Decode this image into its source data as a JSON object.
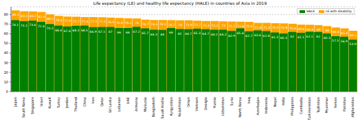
{
  "chart_data": {
    "type": "bar",
    "title": "Life expectancy (LE) and healthy life expectancy (HALE) in countries of Asia in 2019",
    "categories": [
      "Japan",
      "South Korea",
      "Singapore",
      "Israel",
      "Kuwait",
      "Turkey",
      "Jordan",
      "Thailand",
      "China",
      "Iran",
      "Qatar",
      "Sri Lanka",
      "Lebanon",
      "UAE",
      "Armenia",
      "Malaysia",
      "Bangladesh",
      "Saudi Arabia",
      "Kyrgyzstan",
      "Kazakhstan",
      "Oman",
      "Vietnam",
      "Georgia",
      "Russia",
      "Uzbekistan",
      "Syria",
      "North Korea",
      "Iraq",
      "Azerbaijan",
      "Indonesia",
      "Nepal",
      "India",
      "Philippines",
      "Cambodia",
      "Turkmenistan",
      "Tajikistan",
      "Myanmar",
      "Yemen",
      "Pakistan",
      "Afghanistan"
    ],
    "series": [
      {
        "name": "HALE",
        "color": "#008000",
        "values": [
          74.1,
          73.1,
          73.6,
          72.4,
          70.1,
          68.4,
          67.6,
          68.3,
          68.5,
          66.9,
          67.1,
          67.0,
          66.0,
          66.0,
          67.2,
          65.7,
          64.3,
          64.0,
          66.0,
          65.0,
          64.7,
          65.3,
          64.7,
          64.2,
          64.2,
          62.9,
          65.6,
          62.7,
          63.6,
          62.8,
          61.3,
          60.3,
          62.0,
          61.1,
          62.1,
          62.0,
          60.3,
          57.5,
          56.9,
          53.9
        ]
      },
      {
        "name": "LE with disability",
        "color": "#ffa500",
        "values": [
          84.3,
          83.3,
          83.2,
          82.6,
          80.2,
          78.6,
          77.9,
          77.7,
          77.4,
          77.3,
          77.2,
          76.9,
          76.4,
          76.1,
          76.0,
          74.7,
          74.3,
          74.3,
          74.2,
          74.0,
          73.9,
          73.7,
          73.3,
          73.2,
          73.0,
          72.7,
          72.6,
          72.4,
          71.4,
          71.3,
          70.9,
          70.8,
          70.4,
          69.6,
          69.3,
          69.0,
          68.0,
          66.6,
          65.6,
          63.2
        ]
      }
    ],
    "ylim": [
      0,
      88
    ],
    "yticks": [
      0,
      10,
      20,
      30,
      40,
      50,
      60,
      70,
      80
    ],
    "grid": true,
    "legend": "upper right",
    "data_labels": true
  }
}
